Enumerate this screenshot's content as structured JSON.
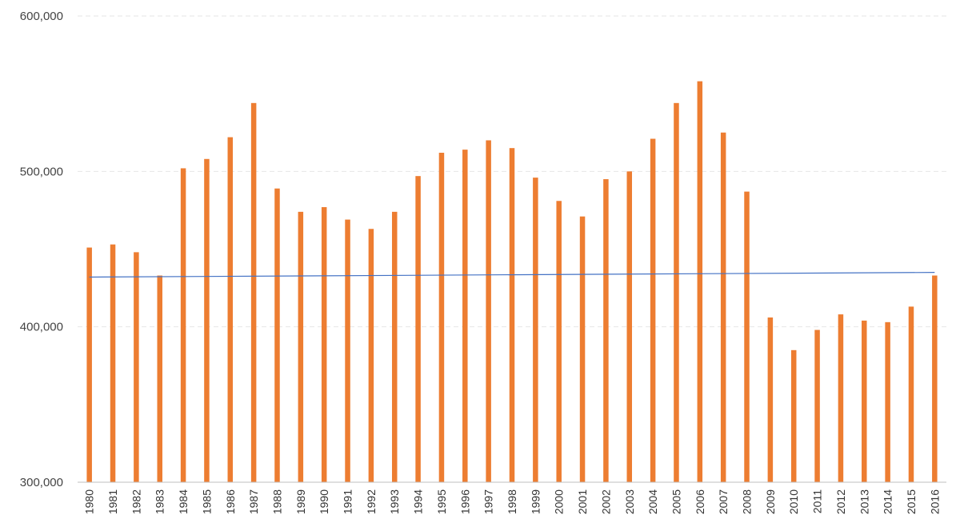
{
  "chart_data": {
    "type": "bar",
    "title": "",
    "xlabel": "",
    "ylabel": "",
    "ylim": [
      300000,
      600000
    ],
    "yticks": [
      300000,
      400000,
      500000,
      600000
    ],
    "ytick_labels": [
      "300,000",
      "400,000",
      "500,000",
      "600,000"
    ],
    "grid": true,
    "categories": [
      "1980",
      "1981",
      "1982",
      "1983",
      "1984",
      "1985",
      "1986",
      "1987",
      "1988",
      "1989",
      "1990",
      "1991",
      "1992",
      "1993",
      "1994",
      "1995",
      "1996",
      "1997",
      "1998",
      "1999",
      "2000",
      "2001",
      "2002",
      "2003",
      "2004",
      "2005",
      "2006",
      "2007",
      "2008",
      "2009",
      "2010",
      "2011",
      "2012",
      "2013",
      "2014",
      "2015",
      "2016"
    ],
    "series": [
      {
        "type": "bar",
        "color": "#ED7D31",
        "values": [
          451000,
          453000,
          448000,
          433000,
          502000,
          508000,
          522000,
          544000,
          489000,
          474000,
          477000,
          469000,
          463000,
          474000,
          497000,
          512000,
          514000,
          520000,
          515000,
          496000,
          481000,
          471000,
          495000,
          500000,
          521000,
          544000,
          558000,
          525000,
          487000,
          406000,
          385000,
          398000,
          408000,
          404000,
          403000,
          413000,
          433000
        ]
      },
      {
        "type": "line",
        "role": "trendline",
        "color": "#4472C4",
        "start": 432000,
        "end": 435000
      }
    ]
  }
}
